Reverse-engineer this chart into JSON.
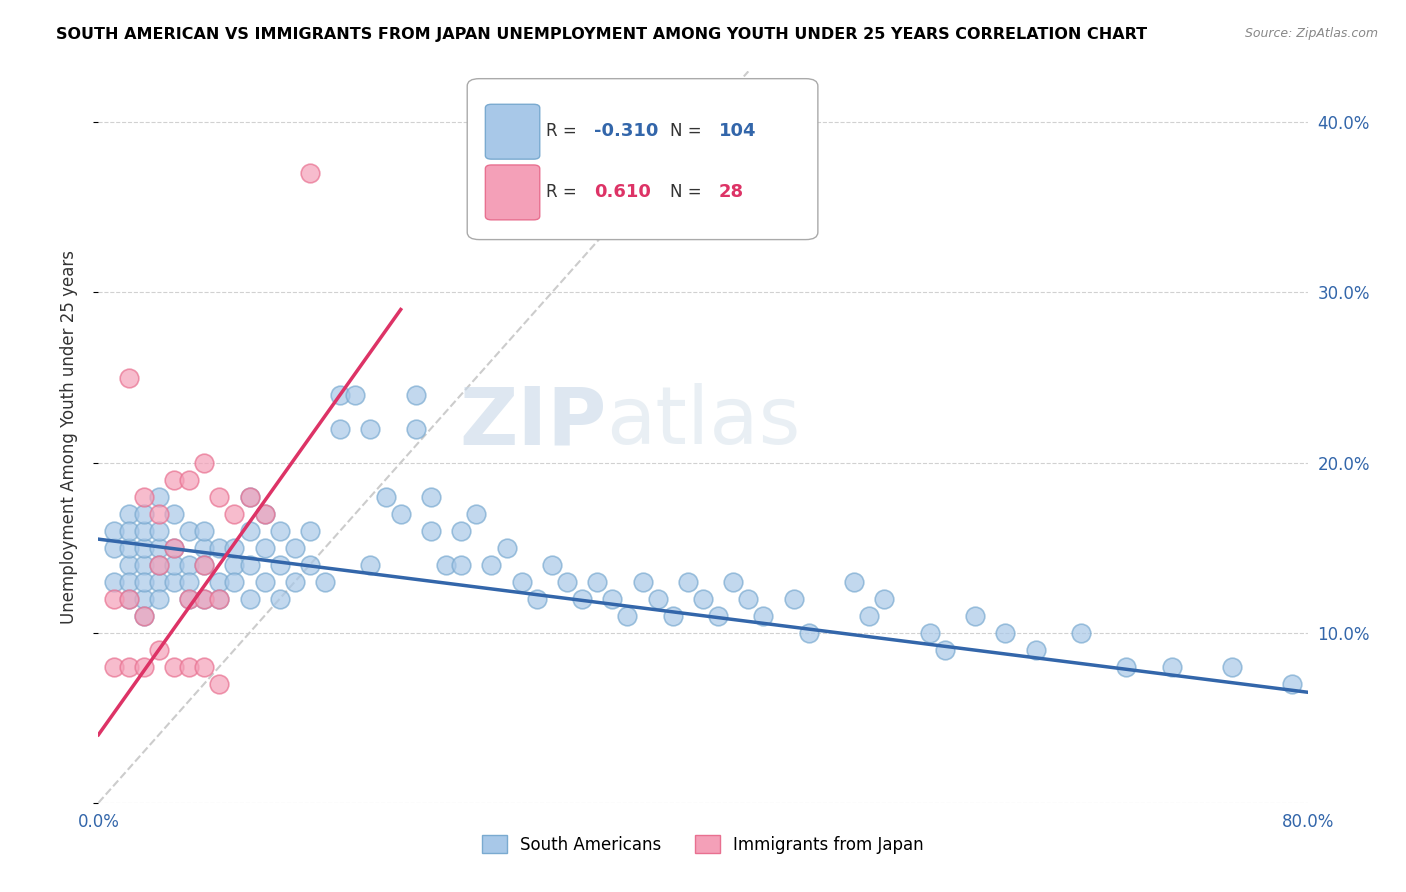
{
  "title": "SOUTH AMERICAN VS IMMIGRANTS FROM JAPAN UNEMPLOYMENT AMONG YOUTH UNDER 25 YEARS CORRELATION CHART",
  "source": "Source: ZipAtlas.com",
  "ylabel": "Unemployment Among Youth under 25 years",
  "xlim": [
    0,
    0.8
  ],
  "ylim": [
    0,
    0.43
  ],
  "xticks": [
    0.0,
    0.1,
    0.2,
    0.3,
    0.4,
    0.5,
    0.6,
    0.7,
    0.8
  ],
  "xticklabels": [
    "0.0%",
    "",
    "",
    "",
    "",
    "",
    "",
    "",
    "80.0%"
  ],
  "yticks": [
    0.0,
    0.1,
    0.2,
    0.3,
    0.4
  ],
  "yticklabels_right": [
    "",
    "10.0%",
    "20.0%",
    "30.0%",
    "40.0%"
  ],
  "blue_R": -0.31,
  "blue_N": 104,
  "pink_R": 0.61,
  "pink_N": 28,
  "blue_color": "#A8C8E8",
  "pink_color": "#F4A0B8",
  "blue_edge_color": "#7AAAD0",
  "pink_edge_color": "#E87090",
  "blue_line_color": "#3366AA",
  "pink_line_color": "#DD3366",
  "watermark_zip": "ZIP",
  "watermark_atlas": "atlas",
  "legend_label_blue": "South Americans",
  "legend_label_pink": "Immigrants from Japan",
  "blue_line_x0": 0.0,
  "blue_line_y0": 0.155,
  "blue_line_x1": 0.8,
  "blue_line_y1": 0.065,
  "pink_line_x0": 0.0,
  "pink_line_y0": 0.04,
  "pink_line_x1": 0.2,
  "pink_line_y1": 0.29,
  "diag_line_x0": 0.0,
  "diag_line_y0": 0.0,
  "diag_line_x1": 0.43,
  "diag_line_y1": 0.43,
  "blue_scatter_x": [
    0.01,
    0.01,
    0.01,
    0.02,
    0.02,
    0.02,
    0.02,
    0.02,
    0.02,
    0.03,
    0.03,
    0.03,
    0.03,
    0.03,
    0.03,
    0.03,
    0.04,
    0.04,
    0.04,
    0.04,
    0.04,
    0.04,
    0.05,
    0.05,
    0.05,
    0.05,
    0.06,
    0.06,
    0.06,
    0.06,
    0.07,
    0.07,
    0.07,
    0.07,
    0.08,
    0.08,
    0.08,
    0.09,
    0.09,
    0.09,
    0.1,
    0.1,
    0.1,
    0.1,
    0.11,
    0.11,
    0.11,
    0.12,
    0.12,
    0.12,
    0.13,
    0.13,
    0.14,
    0.14,
    0.15,
    0.16,
    0.16,
    0.17,
    0.18,
    0.18,
    0.19,
    0.2,
    0.21,
    0.21,
    0.22,
    0.22,
    0.23,
    0.24,
    0.24,
    0.25,
    0.26,
    0.27,
    0.28,
    0.29,
    0.3,
    0.31,
    0.32,
    0.33,
    0.34,
    0.35,
    0.36,
    0.37,
    0.38,
    0.39,
    0.4,
    0.41,
    0.42,
    0.43,
    0.44,
    0.46,
    0.47,
    0.5,
    0.51,
    0.52,
    0.55,
    0.56,
    0.58,
    0.6,
    0.62,
    0.65,
    0.68,
    0.71,
    0.75,
    0.79
  ],
  "blue_scatter_y": [
    0.13,
    0.15,
    0.16,
    0.12,
    0.14,
    0.15,
    0.17,
    0.13,
    0.16,
    0.12,
    0.14,
    0.15,
    0.16,
    0.13,
    0.17,
    0.11,
    0.13,
    0.15,
    0.14,
    0.12,
    0.16,
    0.18,
    0.13,
    0.15,
    0.14,
    0.17,
    0.12,
    0.14,
    0.16,
    0.13,
    0.15,
    0.12,
    0.14,
    0.16,
    0.13,
    0.15,
    0.12,
    0.14,
    0.13,
    0.15,
    0.18,
    0.16,
    0.14,
    0.12,
    0.15,
    0.13,
    0.17,
    0.16,
    0.14,
    0.12,
    0.15,
    0.13,
    0.14,
    0.16,
    0.13,
    0.24,
    0.22,
    0.24,
    0.22,
    0.14,
    0.18,
    0.17,
    0.24,
    0.22,
    0.18,
    0.16,
    0.14,
    0.16,
    0.14,
    0.17,
    0.14,
    0.15,
    0.13,
    0.12,
    0.14,
    0.13,
    0.12,
    0.13,
    0.12,
    0.11,
    0.13,
    0.12,
    0.11,
    0.13,
    0.12,
    0.11,
    0.13,
    0.12,
    0.11,
    0.12,
    0.1,
    0.13,
    0.11,
    0.12,
    0.1,
    0.09,
    0.11,
    0.1,
    0.09,
    0.1,
    0.08,
    0.08,
    0.08,
    0.07
  ],
  "pink_scatter_x": [
    0.01,
    0.01,
    0.02,
    0.02,
    0.02,
    0.03,
    0.03,
    0.03,
    0.04,
    0.04,
    0.04,
    0.05,
    0.05,
    0.05,
    0.06,
    0.06,
    0.06,
    0.07,
    0.07,
    0.07,
    0.07,
    0.08,
    0.08,
    0.08,
    0.09,
    0.1,
    0.11,
    0.14
  ],
  "pink_scatter_y": [
    0.12,
    0.08,
    0.25,
    0.08,
    0.12,
    0.11,
    0.08,
    0.18,
    0.17,
    0.09,
    0.14,
    0.15,
    0.08,
    0.19,
    0.19,
    0.12,
    0.08,
    0.2,
    0.12,
    0.08,
    0.14,
    0.18,
    0.12,
    0.07,
    0.17,
    0.18,
    0.17,
    0.37
  ]
}
